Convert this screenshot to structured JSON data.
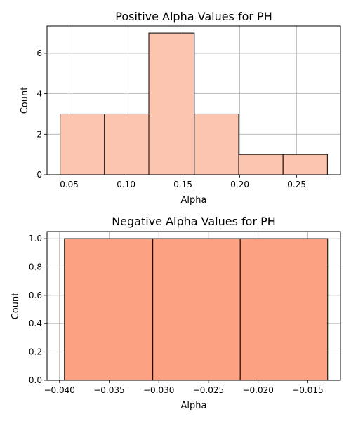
{
  "chart_data": [
    {
      "type": "bar",
      "title": "Positive Alpha Values for PH",
      "xlabel": "Alpha",
      "ylabel": "Count",
      "bin_edges": [
        0.042,
        0.081,
        0.12,
        0.16,
        0.199,
        0.238,
        0.277
      ],
      "values": [
        3,
        3,
        7,
        3,
        1,
        1
      ],
      "xlim": [
        0.0305,
        0.2885
      ],
      "ylim": [
        0,
        7.35
      ],
      "xticks": [
        0.05,
        0.1,
        0.15,
        0.2,
        0.25
      ],
      "xtick_labels": [
        "0.05",
        "0.10",
        "0.15",
        "0.20",
        "0.25"
      ],
      "yticks": [
        0,
        2,
        4,
        6
      ],
      "ytick_labels": [
        "0",
        "2",
        "4",
        "6"
      ],
      "grid": true,
      "bar_color": "#fcc5b0",
      "edge_color": "#000000"
    },
    {
      "type": "bar",
      "title": "Negative Alpha Values for PH",
      "xlabel": "Alpha",
      "ylabel": "Count",
      "bin_edges": [
        -0.0395,
        -0.0306,
        -0.0218,
        -0.013
      ],
      "values": [
        1,
        1,
        1
      ],
      "xlim": [
        -0.04125,
        -0.01171
      ],
      "ylim": [
        0,
        1.05
      ],
      "xticks": [
        -0.04,
        -0.035,
        -0.03,
        -0.025,
        -0.02,
        -0.015
      ],
      "xtick_labels": [
        "−0.040",
        "−0.035",
        "−0.030",
        "−0.025",
        "−0.020",
        "−0.015"
      ],
      "yticks": [
        0.0,
        0.2,
        0.4,
        0.6,
        0.8,
        1.0
      ],
      "ytick_labels": [
        "0.0",
        "0.2",
        "0.4",
        "0.6",
        "0.8",
        "1.0"
      ],
      "grid": true,
      "bar_color": "#fca283",
      "edge_color": "#000000"
    }
  ]
}
